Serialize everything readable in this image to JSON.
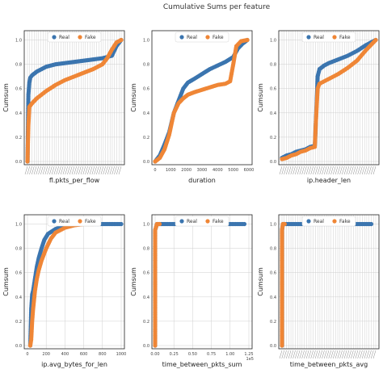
{
  "figure": {
    "suptitle": "Cumulative Sums per feature",
    "colors": {
      "Real": "#3b75af",
      "Fake": "#ef8636"
    }
  },
  "chart_data": [
    {
      "type": "scatter",
      "xlabel": "fl.pkts_per_flow",
      "ylabel": "Cumsum",
      "x_tick_style": "dense-unreadable",
      "ylim": [
        0,
        1.05
      ],
      "yticks": [
        "0.0",
        "0.2",
        "0.4",
        "0.6",
        "0.8",
        "1.0"
      ],
      "grid": true,
      "legend": "top-center",
      "series": [
        {
          "name": "Real",
          "x": [
            0,
            0.01,
            0.02,
            0.03,
            0.05,
            0.1,
            0.2,
            0.3,
            0.4,
            0.5,
            0.6,
            0.7,
            0.8,
            0.9,
            0.95,
            1.0
          ],
          "y": [
            0,
            0.55,
            0.65,
            0.69,
            0.71,
            0.74,
            0.78,
            0.8,
            0.81,
            0.82,
            0.83,
            0.84,
            0.85,
            0.87,
            0.95,
            1.0
          ]
        },
        {
          "name": "Fake",
          "x": [
            0,
            0.01,
            0.02,
            0.05,
            0.1,
            0.2,
            0.3,
            0.4,
            0.5,
            0.6,
            0.7,
            0.8,
            0.85,
            0.9,
            0.95,
            1.0
          ],
          "y": [
            0,
            0.3,
            0.45,
            0.48,
            0.52,
            0.58,
            0.63,
            0.67,
            0.7,
            0.73,
            0.76,
            0.8,
            0.85,
            0.92,
            0.98,
            1.0
          ]
        }
      ]
    },
    {
      "type": "scatter",
      "xlabel": "duration",
      "ylabel": "Cumsum",
      "xlim": [
        0,
        6000
      ],
      "xticks": [
        "0",
        "1000",
        "2000",
        "3000",
        "4000",
        "5000",
        "6000"
      ],
      "ylim": [
        0,
        1.05
      ],
      "yticks": [
        "0.0",
        "0.2",
        "0.4",
        "0.6",
        "0.8",
        "1.0"
      ],
      "grid": false,
      "legend": "top-center",
      "series": [
        {
          "name": "Real",
          "x": [
            0,
            300,
            600,
            900,
            1200,
            1500,
            1800,
            2100,
            2500,
            3000,
            3500,
            4000,
            4500,
            5000,
            5300,
            5600,
            5900
          ],
          "y": [
            0,
            0.05,
            0.14,
            0.24,
            0.4,
            0.5,
            0.6,
            0.65,
            0.68,
            0.72,
            0.76,
            0.79,
            0.82,
            0.86,
            0.93,
            0.97,
            1.0
          ]
        },
        {
          "name": "Fake",
          "x": [
            0,
            300,
            600,
            900,
            1200,
            1500,
            1800,
            2100,
            2500,
            3000,
            3500,
            4000,
            4500,
            4800,
            5000,
            5200,
            5500,
            5900
          ],
          "y": [
            0,
            0.03,
            0.1,
            0.22,
            0.4,
            0.48,
            0.52,
            0.55,
            0.57,
            0.59,
            0.61,
            0.63,
            0.64,
            0.66,
            0.8,
            0.95,
            0.99,
            1.0
          ]
        }
      ]
    },
    {
      "type": "scatter",
      "xlabel": "ip.header_len",
      "ylabel": "Cumsum",
      "x_tick_style": "dense-unreadable",
      "ylim": [
        0,
        1.05
      ],
      "yticks": [
        "0.0",
        "0.2",
        "0.4",
        "0.6",
        "0.8",
        "1.0"
      ],
      "grid": true,
      "legend": "top-center",
      "series": [
        {
          "name": "Real",
          "x": [
            0,
            0.05,
            0.1,
            0.15,
            0.2,
            0.25,
            0.3,
            0.35,
            0.36,
            0.38,
            0.4,
            0.45,
            0.5,
            0.6,
            0.7,
            0.8,
            0.9,
            1.0
          ],
          "y": [
            0.03,
            0.05,
            0.06,
            0.08,
            0.09,
            0.1,
            0.12,
            0.13,
            0.3,
            0.7,
            0.76,
            0.79,
            0.81,
            0.84,
            0.87,
            0.91,
            0.96,
            1.0
          ]
        },
        {
          "name": "Fake",
          "x": [
            0,
            0.05,
            0.1,
            0.15,
            0.2,
            0.25,
            0.3,
            0.35,
            0.36,
            0.38,
            0.4,
            0.5,
            0.6,
            0.7,
            0.8,
            0.9,
            1.0
          ],
          "y": [
            0.02,
            0.03,
            0.05,
            0.06,
            0.08,
            0.09,
            0.11,
            0.12,
            0.3,
            0.6,
            0.64,
            0.68,
            0.72,
            0.77,
            0.83,
            0.92,
            1.0
          ]
        }
      ]
    },
    {
      "type": "scatter",
      "xlabel": "ip.avg_bytes_for_len",
      "ylabel": "Cumsum",
      "xlim": [
        0,
        1000
      ],
      "xticks": [
        "0",
        "200",
        "400",
        "600",
        "800",
        "1000"
      ],
      "ylim": [
        0,
        1.05
      ],
      "yticks": [
        "0.0",
        "0.2",
        "0.4",
        "0.6",
        "0.8",
        "1.0"
      ],
      "grid": true,
      "legend": "top-center",
      "series": [
        {
          "name": "Real",
          "x": [
            30,
            40,
            50,
            60,
            80,
            100,
            120,
            150,
            180,
            220,
            300,
            400,
            600,
            800,
            1000
          ],
          "y": [
            0,
            0.3,
            0.42,
            0.45,
            0.55,
            0.65,
            0.72,
            0.8,
            0.87,
            0.92,
            0.96,
            0.99,
            1.0,
            1.0,
            1.0
          ]
        },
        {
          "name": "Fake",
          "x": [
            30,
            40,
            50,
            60,
            80,
            100,
            120,
            150,
            200,
            250,
            300,
            400,
            500,
            600,
            700
          ],
          "y": [
            0,
            0.05,
            0.2,
            0.3,
            0.45,
            0.55,
            0.62,
            0.7,
            0.8,
            0.88,
            0.93,
            0.97,
            0.99,
            1.0,
            1.0
          ]
        }
      ]
    },
    {
      "type": "scatter",
      "xlabel": "time_between_pkts_sum",
      "ylabel": "Cumsum",
      "x_offset_label": "1e5",
      "xlim": [
        0,
        1.05
      ],
      "xticks": [
        "0.00",
        "0.25",
        "0.50",
        "0.75",
        "1.00",
        "1.25"
      ],
      "ylim": [
        0,
        1.05
      ],
      "yticks": [
        "0.0",
        "0.2",
        "0.4",
        "0.6",
        "0.8",
        "1.0"
      ],
      "grid": true,
      "legend": "top-center",
      "series": [
        {
          "name": "Real",
          "x": [
            0,
            0,
            0,
            0,
            0,
            0,
            0,
            0,
            0,
            0.02,
            0.05,
            0.08,
            1.0
          ],
          "y": [
            0,
            0.1,
            0.2,
            0.3,
            0.4,
            0.5,
            0.6,
            0.8,
            0.95,
            1.0,
            1.0,
            1.0,
            1.0
          ]
        },
        {
          "name": "Fake",
          "x": [
            0,
            0,
            0,
            0,
            0,
            0,
            0,
            0,
            0,
            0.02,
            0.05
          ],
          "y": [
            0,
            0.1,
            0.2,
            0.3,
            0.4,
            0.5,
            0.6,
            0.8,
            0.95,
            1.0,
            1.0
          ]
        }
      ]
    },
    {
      "type": "scatter",
      "xlabel": "time_between_pkts_avg",
      "ylabel": "Cumsum",
      "x_tick_style": "dense-unreadable",
      "xlim": [
        0,
        1.05
      ],
      "ylim": [
        0,
        1.05
      ],
      "yticks": [
        "0.0",
        "0.2",
        "0.4",
        "0.6",
        "0.8",
        "1.0"
      ],
      "grid": true,
      "legend": "top-center",
      "series": [
        {
          "name": "Real",
          "x": [
            0,
            0,
            0,
            0,
            0,
            0,
            0,
            0,
            0.01,
            0.03,
            0.83,
            1.0
          ],
          "y": [
            0,
            0.1,
            0.2,
            0.3,
            0.4,
            0.6,
            0.8,
            0.95,
            1.0,
            1.0,
            1.0,
            1.0
          ]
        },
        {
          "name": "Fake",
          "x": [
            0,
            0,
            0,
            0,
            0,
            0,
            0,
            0,
            0.01,
            0.03
          ],
          "y": [
            0,
            0.1,
            0.2,
            0.3,
            0.4,
            0.6,
            0.8,
            0.95,
            1.0,
            1.0
          ]
        }
      ]
    }
  ]
}
